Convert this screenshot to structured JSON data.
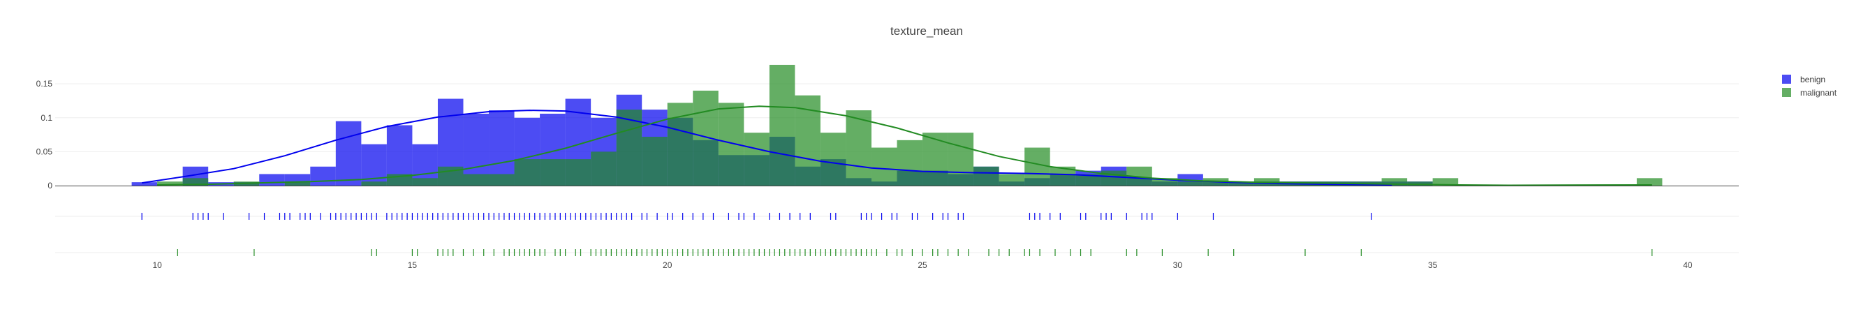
{
  "chart_data": {
    "type": "histogram",
    "title": "texture_mean",
    "xlabel": "",
    "ylabel": "",
    "xlim": [
      8,
      41
    ],
    "ylim": [
      0,
      0.18
    ],
    "x_ticks": [
      10,
      15,
      20,
      25,
      30,
      35,
      40
    ],
    "y_ticks": [
      0,
      0.05,
      0.1,
      0.15
    ],
    "x_tick_labels": [
      "10",
      "15",
      "20",
      "25",
      "30",
      "35",
      "40"
    ],
    "y_tick_labels": [
      "0",
      "0.05",
      "0.1",
      "0.15"
    ],
    "grid": true,
    "legend_position": "top-right",
    "bin_width": 0.5,
    "series": [
      {
        "name": "benign",
        "color": "#0000ee",
        "opacity": 0.7,
        "bins": [
          [
            9.5,
            0.005
          ],
          [
            10.5,
            0.028
          ],
          [
            11.0,
            0.005
          ],
          [
            11.5,
            0.005
          ],
          [
            12.0,
            0.017
          ],
          [
            12.5,
            0.017
          ],
          [
            13.0,
            0.028
          ],
          [
            13.5,
            0.095
          ],
          [
            14.0,
            0.061
          ],
          [
            14.5,
            0.089
          ],
          [
            15.0,
            0.061
          ],
          [
            15.5,
            0.128
          ],
          [
            16.0,
            0.106
          ],
          [
            16.5,
            0.111
          ],
          [
            17.0,
            0.1
          ],
          [
            17.5,
            0.106
          ],
          [
            18.0,
            0.128
          ],
          [
            18.5,
            0.1
          ],
          [
            19.0,
            0.134
          ],
          [
            19.5,
            0.112
          ],
          [
            20.0,
            0.1
          ],
          [
            20.5,
            0.067
          ],
          [
            21.0,
            0.045
          ],
          [
            21.5,
            0.045
          ],
          [
            22.0,
            0.072
          ],
          [
            22.5,
            0.028
          ],
          [
            23.0,
            0.039
          ],
          [
            23.5,
            0.011
          ],
          [
            24.0,
            0.006
          ],
          [
            24.5,
            0.022
          ],
          [
            25.0,
            0.022
          ],
          [
            25.5,
            0.017
          ],
          [
            26.0,
            0.028
          ],
          [
            26.5,
            0.006
          ],
          [
            27.0,
            0.011
          ],
          [
            27.5,
            0.017
          ],
          [
            28.0,
            0.022
          ],
          [
            28.5,
            0.028
          ],
          [
            29.0,
            0.011
          ],
          [
            29.5,
            0.006
          ],
          [
            30.0,
            0.017
          ],
          [
            30.5,
            0.006
          ],
          [
            31.0,
            0.006
          ],
          [
            31.5,
            0.006
          ],
          [
            32.0,
            0.006
          ],
          [
            32.5,
            0.006
          ],
          [
            33.0,
            0.006
          ],
          [
            33.5,
            0.006
          ],
          [
            34.0,
            0.006
          ],
          [
            34.5,
            0.006
          ]
        ],
        "density_curve": [
          [
            9.7,
            0.004
          ],
          [
            10.5,
            0.013
          ],
          [
            11.5,
            0.025
          ],
          [
            12.5,
            0.044
          ],
          [
            13.5,
            0.067
          ],
          [
            14.5,
            0.087
          ],
          [
            15.5,
            0.101
          ],
          [
            16.5,
            0.109
          ],
          [
            17.3,
            0.111
          ],
          [
            18.0,
            0.11
          ],
          [
            19.0,
            0.101
          ],
          [
            20.0,
            0.086
          ],
          [
            21.0,
            0.067
          ],
          [
            22.0,
            0.05
          ],
          [
            23.0,
            0.036
          ],
          [
            24.0,
            0.026
          ],
          [
            25.0,
            0.021
          ],
          [
            26.0,
            0.019
          ],
          [
            27.0,
            0.018
          ],
          [
            28.0,
            0.016
          ],
          [
            29.0,
            0.012
          ],
          [
            30.0,
            0.008
          ],
          [
            31.0,
            0.005
          ],
          [
            32.0,
            0.003
          ],
          [
            33.0,
            0.002
          ],
          [
            34.2,
            0.001
          ]
        ],
        "rug": [
          9.7,
          10.7,
          10.8,
          10.9,
          11.0,
          11.3,
          11.8,
          12.1,
          12.4,
          12.5,
          12.6,
          12.8,
          12.9,
          13.0,
          13.2,
          13.4,
          13.5,
          13.6,
          13.7,
          13.8,
          13.9,
          14.0,
          14.1,
          14.2,
          14.3,
          14.5,
          14.6,
          14.7,
          14.8,
          14.9,
          15.0,
          15.1,
          15.2,
          15.3,
          15.4,
          15.5,
          15.6,
          15.7,
          15.8,
          15.9,
          16.0,
          16.1,
          16.2,
          16.3,
          16.4,
          16.5,
          16.6,
          16.7,
          16.8,
          16.9,
          17.0,
          17.1,
          17.2,
          17.3,
          17.4,
          17.5,
          17.6,
          17.7,
          17.8,
          17.9,
          18.0,
          18.1,
          18.2,
          18.3,
          18.4,
          18.5,
          18.6,
          18.7,
          18.8,
          18.9,
          19.0,
          19.1,
          19.2,
          19.3,
          19.5,
          19.6,
          19.8,
          20.0,
          20.1,
          20.3,
          20.5,
          20.7,
          20.9,
          21.2,
          21.4,
          21.5,
          21.7,
          22.0,
          22.2,
          22.4,
          22.6,
          22.8,
          23.2,
          23.3,
          23.8,
          23.9,
          24.0,
          24.2,
          24.4,
          24.5,
          24.8,
          24.9,
          25.2,
          25.4,
          25.5,
          25.7,
          25.8,
          27.1,
          27.2,
          27.3,
          27.5,
          27.7,
          28.1,
          28.2,
          28.5,
          28.6,
          28.7,
          29.0,
          29.3,
          29.4,
          29.5,
          30.0,
          30.7,
          33.8
        ]
      },
      {
        "name": "malignant",
        "color": "#228b22",
        "opacity": 0.7,
        "bins": [
          [
            10.0,
            0.006
          ],
          [
            10.5,
            0.011
          ],
          [
            11.5,
            0.006
          ],
          [
            12.5,
            0.006
          ],
          [
            14.0,
            0.006
          ],
          [
            14.5,
            0.017
          ],
          [
            15.0,
            0.011
          ],
          [
            15.5,
            0.028
          ],
          [
            16.0,
            0.017
          ],
          [
            16.5,
            0.017
          ],
          [
            17.0,
            0.039
          ],
          [
            17.5,
            0.039
          ],
          [
            18.0,
            0.039
          ],
          [
            18.5,
            0.05
          ],
          [
            19.0,
            0.112
          ],
          [
            19.5,
            0.072
          ],
          [
            20.0,
            0.122
          ],
          [
            20.5,
            0.14
          ],
          [
            21.0,
            0.122
          ],
          [
            21.5,
            0.078
          ],
          [
            22.0,
            0.178
          ],
          [
            22.5,
            0.133
          ],
          [
            23.0,
            0.078
          ],
          [
            23.5,
            0.111
          ],
          [
            24.0,
            0.056
          ],
          [
            24.5,
            0.067
          ],
          [
            25.0,
            0.078
          ],
          [
            25.5,
            0.078
          ],
          [
            26.0,
            0.028
          ],
          [
            26.5,
            0.017
          ],
          [
            27.0,
            0.056
          ],
          [
            27.5,
            0.028
          ],
          [
            28.0,
            0.017
          ],
          [
            28.5,
            0.022
          ],
          [
            29.0,
            0.028
          ],
          [
            29.5,
            0.011
          ],
          [
            30.0,
            0.006
          ],
          [
            30.5,
            0.011
          ],
          [
            31.0,
            0.006
          ],
          [
            31.5,
            0.011
          ],
          [
            32.0,
            0.006
          ],
          [
            32.5,
            0.006
          ],
          [
            33.0,
            0.006
          ],
          [
            33.5,
            0.006
          ],
          [
            34.0,
            0.011
          ],
          [
            34.5,
            0.006
          ],
          [
            35.0,
            0.011
          ],
          [
            39.0,
            0.011
          ]
        ],
        "density_curve": [
          [
            10.0,
            0.001
          ],
          [
            11.0,
            0.002
          ],
          [
            12.0,
            0.004
          ],
          [
            13.0,
            0.006
          ],
          [
            14.0,
            0.009
          ],
          [
            15.0,
            0.015
          ],
          [
            16.0,
            0.024
          ],
          [
            17.0,
            0.037
          ],
          [
            18.0,
            0.055
          ],
          [
            19.0,
            0.077
          ],
          [
            20.0,
            0.098
          ],
          [
            21.0,
            0.113
          ],
          [
            21.8,
            0.117
          ],
          [
            22.5,
            0.115
          ],
          [
            23.5,
            0.103
          ],
          [
            24.5,
            0.085
          ],
          [
            25.5,
            0.063
          ],
          [
            26.5,
            0.043
          ],
          [
            27.5,
            0.028
          ],
          [
            28.5,
            0.018
          ],
          [
            29.5,
            0.011
          ],
          [
            30.5,
            0.007
          ],
          [
            31.5,
            0.005
          ],
          [
            32.5,
            0.004
          ],
          [
            33.5,
            0.003
          ],
          [
            34.5,
            0.002
          ],
          [
            35.5,
            0.001
          ],
          [
            36.5,
            0.0005
          ],
          [
            37.5,
            0.0008
          ],
          [
            39.3,
            0.001
          ]
        ],
        "rug": [
          10.4,
          11.9,
          14.2,
          14.3,
          15.0,
          15.1,
          15.5,
          15.6,
          15.7,
          15.8,
          16.0,
          16.2,
          16.4,
          16.6,
          16.8,
          16.9,
          17.0,
          17.1,
          17.2,
          17.3,
          17.4,
          17.5,
          17.6,
          17.8,
          17.9,
          18.0,
          18.2,
          18.3,
          18.5,
          18.6,
          18.7,
          18.8,
          18.9,
          19.0,
          19.1,
          19.2,
          19.3,
          19.4,
          19.5,
          19.6,
          19.7,
          19.8,
          19.9,
          20.0,
          20.1,
          20.2,
          20.3,
          20.4,
          20.5,
          20.6,
          20.7,
          20.8,
          20.9,
          21.0,
          21.1,
          21.2,
          21.3,
          21.4,
          21.5,
          21.6,
          21.7,
          21.8,
          21.9,
          22.0,
          22.1,
          22.2,
          22.3,
          22.4,
          22.5,
          22.6,
          22.7,
          22.8,
          22.9,
          23.0,
          23.1,
          23.2,
          23.3,
          23.4,
          23.5,
          23.6,
          23.7,
          23.8,
          23.9,
          24.0,
          24.1,
          24.3,
          24.5,
          24.6,
          24.8,
          25.0,
          25.2,
          25.3,
          25.5,
          25.7,
          25.9,
          26.3,
          26.5,
          26.7,
          27.0,
          27.1,
          27.3,
          27.6,
          27.9,
          28.1,
          28.3,
          29.0,
          29.2,
          29.7,
          30.6,
          31.1,
          32.5,
          33.6,
          39.3
        ]
      }
    ]
  }
}
